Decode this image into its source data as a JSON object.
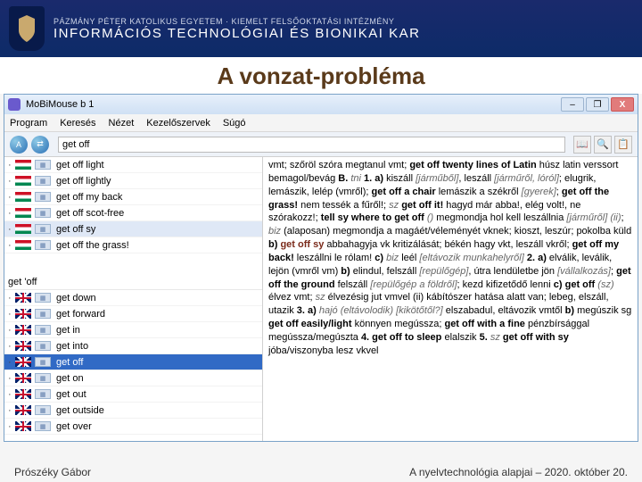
{
  "banner": {
    "sub": "PÁZMÁNY PÉTER KATOLIKUS EGYETEM · KIEMELT FELSŐOKTATÁSI INTÉZMÉNY",
    "main": "INFORMÁCIÓS TECHNOLÓGIAI ÉS BIONIKAI KAR"
  },
  "slide": {
    "title": "A vonzat-probléma"
  },
  "window": {
    "title": "MoBiMouse b 1",
    "btn_min": "–",
    "btn_max": "❐",
    "btn_close": "X"
  },
  "menu": {
    "program": "Program",
    "kereses": "Keresés",
    "nezet": "Nézet",
    "kezelo": "Kezelőszervek",
    "sugo": "Súgó"
  },
  "toolbar": {
    "logo": "⨳",
    "query": "get off",
    "btn_book": "📖",
    "btn_search": "🔍",
    "btn_copy": "📋"
  },
  "leftTop": {
    "items": [
      {
        "flag": "hu",
        "txt": "get off light"
      },
      {
        "flag": "hu",
        "txt": "get off lightly"
      },
      {
        "flag": "hu",
        "txt": "get off my back"
      },
      {
        "flag": "hu",
        "txt": "get off scot-free"
      },
      {
        "flag": "hu",
        "txt": "get off sy",
        "sel": true
      },
      {
        "flag": "hu",
        "txt": "get off the grass!"
      }
    ]
  },
  "groupHeader": "get 'off",
  "leftBottom": {
    "items": [
      {
        "flag": "gb",
        "txt": "get down"
      },
      {
        "flag": "gb",
        "txt": "get forward"
      },
      {
        "flag": "gb",
        "txt": "get in"
      },
      {
        "flag": "gb",
        "txt": "get into"
      },
      {
        "flag": "gb",
        "txt": "get off",
        "sel2": true
      },
      {
        "flag": "gb",
        "txt": "get on"
      },
      {
        "flag": "gb",
        "txt": "get out"
      },
      {
        "flag": "gb",
        "txt": "get outside"
      },
      {
        "flag": "gb",
        "txt": "get over"
      }
    ]
  },
  "definition": {
    "html": "vmt; szőröl szóra megtanul vmt; <b>get off twenty lines of Latin</b> húsz latin verssort bemagol/bevág <b>B.</b> <i>tni</i> <b>1. a)</b> kiszáll <i>[járműből]</i>, leszáll <i>[járműről, lóról]</i>; elugrik, lemászik, lelép (vmről); <b>get off a chair</b> lemászik a székről <i>[gyerek]</i>; <b>get off the grass!</b> nem tessék a fűről!; <i>sz</i> <b>get off it!</b> hagyd már abba!, elég volt!, ne szórakozz!; <b>tell sy where to get off</b> <i>()</i> megmondja hol kell leszállnia <i>[járműről]</i> <i>(ii)</i>; <i>biz</i> (alaposan) megmondja a magáét/véleményét vknek; kioszt, leszúr; pokolba küld <b>b)</b> <span class=\"redish\"><b>get off sy</b></span> abbahagyja vk kritizálását; békén hagy vkt, leszáll vkről; <b>get off my back!</b> leszállni le rólam! <b>c)</b> <i>biz</i> leél <i>[eltávozik munkahelyről]</i> <b>2. a)</b> elválik, leválik, lejön (vmről vm) <b>b)</b> elindul, felszáll <i>[repülőgép]</i>, útra lendületbe jön <i>[vállalkozás]</i>; <b>get off the ground</b> felszáll <i>[repülőgép a földről]</i>; kezd kifizetődő lenni <b>c) get off</b> <i>(sz)</i> élvez vmt; <i>sz</i> élvezésig jut vmvel (ii) kábítószer hatása alatt van; lebeg, elszáll, utazik <b>3. a)</b> <i>hajó</i> <i>(eltávolodik)</i> <i>[kikötőtől?]</i> elszabadul, eltávozik vmtől <b>b)</b> megúszik sg <b>get off easily/light</b> könnyen megússza; <b>get off with a fine</b> pénzbírsággal megússza/megúszta <b>4. get off to sleep</b> elalszik <b>5.</b> <i>sz</i> <b>get off with sy</b> jóba/viszonyba lesz vkvel"
  },
  "footer": {
    "left": "Prószéky Gábor",
    "right": "A nyelvtechnológia alapjai – 2020. október 20."
  }
}
